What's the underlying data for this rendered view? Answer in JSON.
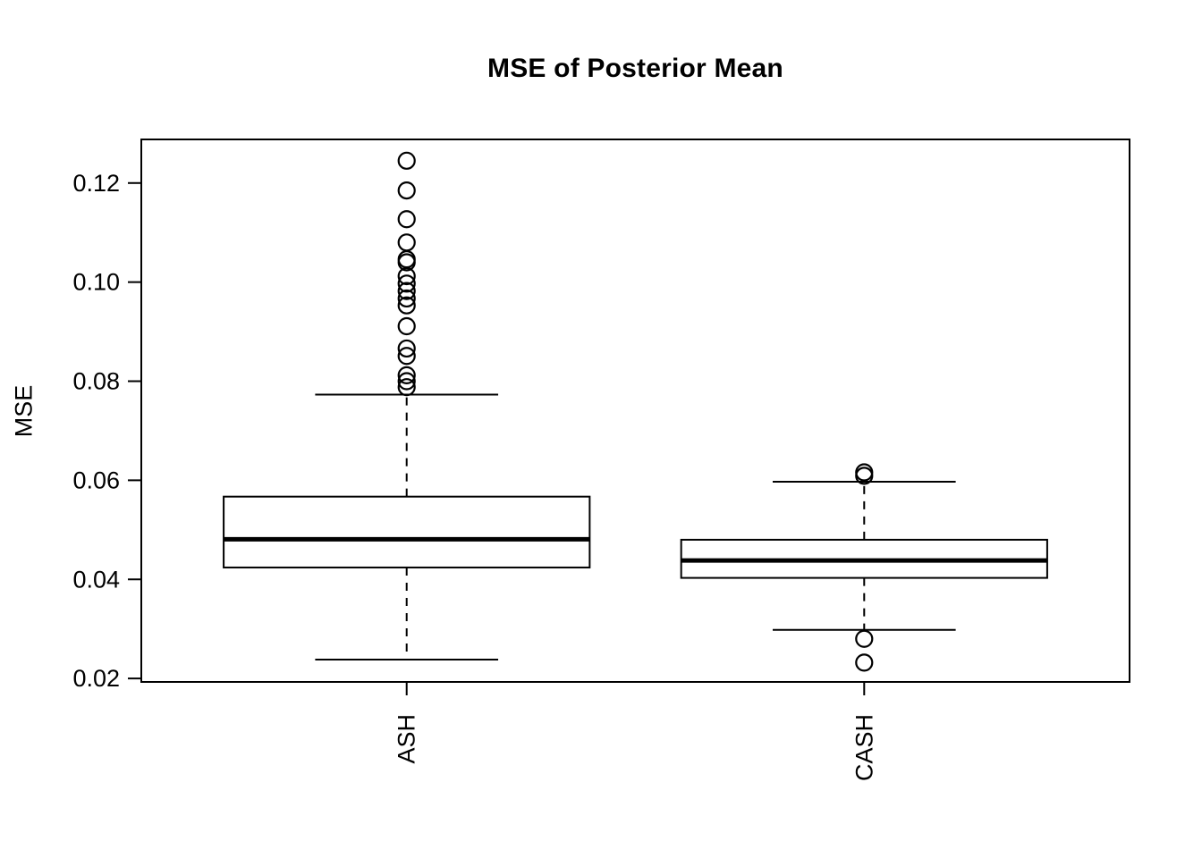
{
  "page": {
    "background": "#ffffff"
  },
  "chart_data": {
    "type": "boxplot",
    "title": "MSE of Posterior Mean",
    "xlabel": "",
    "ylabel": "MSE",
    "categories": [
      "ASH",
      "CASH"
    ],
    "ylim": [
      0.0193,
      0.1288
    ],
    "xlim": [
      0.42,
      2.58
    ],
    "yticks": {
      "values": [
        0.02,
        0.04,
        0.06,
        0.08,
        0.1,
        0.12
      ],
      "labels": [
        "0.02",
        "0.04",
        "0.06",
        "0.08",
        "0.10",
        "0.12"
      ]
    },
    "grid": false,
    "legend": false,
    "frame": true,
    "box_width": 0.8,
    "staple_width": 0.4,
    "colors": {
      "stroke": "#000000",
      "box_fill": "#ffffff",
      "background": "#ffffff"
    },
    "series": [
      {
        "name": "ASH",
        "position": 1,
        "stats": {
          "whisker_low": 0.0238,
          "q1": 0.0424,
          "median": 0.0481,
          "q3": 0.0567,
          "whisker_high": 0.0773
        },
        "outliers": [
          0.1245,
          0.1185,
          0.1127,
          0.108,
          0.1046,
          0.104,
          0.1012,
          0.0997,
          0.0982,
          0.0967,
          0.0953,
          0.0911,
          0.0866,
          0.0851,
          0.0812,
          0.08,
          0.0788
        ]
      },
      {
        "name": "CASH",
        "position": 2,
        "stats": {
          "whisker_low": 0.0298,
          "q1": 0.0403,
          "median": 0.0438,
          "q3": 0.048,
          "whisker_high": 0.0597
        },
        "outliers": [
          0.0616,
          0.0609,
          0.028,
          0.0232
        ]
      }
    ]
  }
}
